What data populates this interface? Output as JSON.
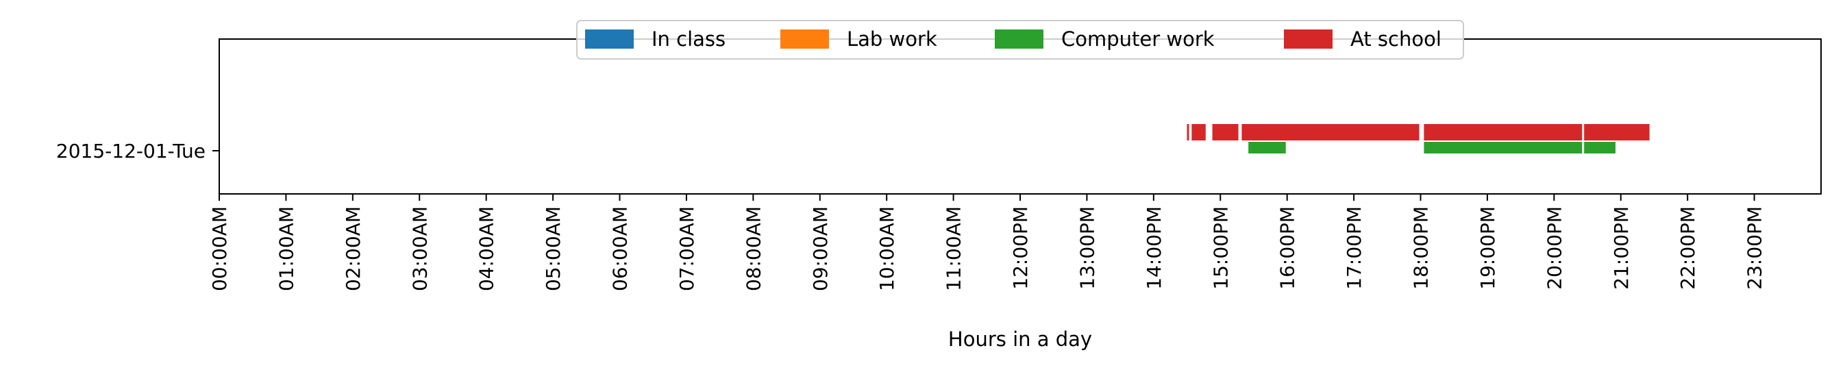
{
  "chart_data": {
    "type": "timeline",
    "xlabel": "Hours in a day",
    "ylabel": "",
    "title": "",
    "xlim": [
      0,
      24
    ],
    "x_ticks": [
      {
        "value": 0,
        "label": "00:00AM"
      },
      {
        "value": 1,
        "label": "01:00AM"
      },
      {
        "value": 2,
        "label": "02:00AM"
      },
      {
        "value": 3,
        "label": "03:00AM"
      },
      {
        "value": 4,
        "label": "04:00AM"
      },
      {
        "value": 5,
        "label": "05:00AM"
      },
      {
        "value": 6,
        "label": "06:00AM"
      },
      {
        "value": 7,
        "label": "07:00AM"
      },
      {
        "value": 8,
        "label": "08:00AM"
      },
      {
        "value": 9,
        "label": "09:00AM"
      },
      {
        "value": 10,
        "label": "10:00AM"
      },
      {
        "value": 11,
        "label": "11:00AM"
      },
      {
        "value": 12,
        "label": "12:00PM"
      },
      {
        "value": 13,
        "label": "13:00PM"
      },
      {
        "value": 14,
        "label": "14:00PM"
      },
      {
        "value": 15,
        "label": "15:00PM"
      },
      {
        "value": 16,
        "label": "16:00PM"
      },
      {
        "value": 17,
        "label": "17:00PM"
      },
      {
        "value": 18,
        "label": "18:00PM"
      },
      {
        "value": 19,
        "label": "19:00PM"
      },
      {
        "value": 20,
        "label": "20:00PM"
      },
      {
        "value": 21,
        "label": "21:00PM"
      },
      {
        "value": 22,
        "label": "22:00PM"
      },
      {
        "value": 23,
        "label": "23:00PM"
      }
    ],
    "rows": [
      "2015-12-01-Tue"
    ],
    "legend": {
      "placement": "upper center"
    },
    "series": [
      {
        "name": "In class",
        "color": "#1f77b4",
        "row": "2015-12-01-Tue",
        "intervals": []
      },
      {
        "name": "Lab work",
        "color": "#ff7f0e",
        "row": "2015-12-01-Tue",
        "intervals": []
      },
      {
        "name": "Computer work",
        "color": "#2ca02c",
        "row": "2015-12-01-Tue",
        "intervals": [
          [
            15.42,
            15.98
          ],
          [
            18.05,
            20.42
          ],
          [
            20.45,
            20.92
          ]
        ]
      },
      {
        "name": "At school",
        "color": "#d62728",
        "row": "2015-12-01-Tue",
        "intervals": [
          [
            14.5,
            14.53
          ],
          [
            14.57,
            14.78
          ],
          [
            14.88,
            15.27
          ],
          [
            15.32,
            17.98
          ],
          [
            18.05,
            20.42
          ],
          [
            20.45,
            21.43
          ]
        ]
      }
    ]
  }
}
